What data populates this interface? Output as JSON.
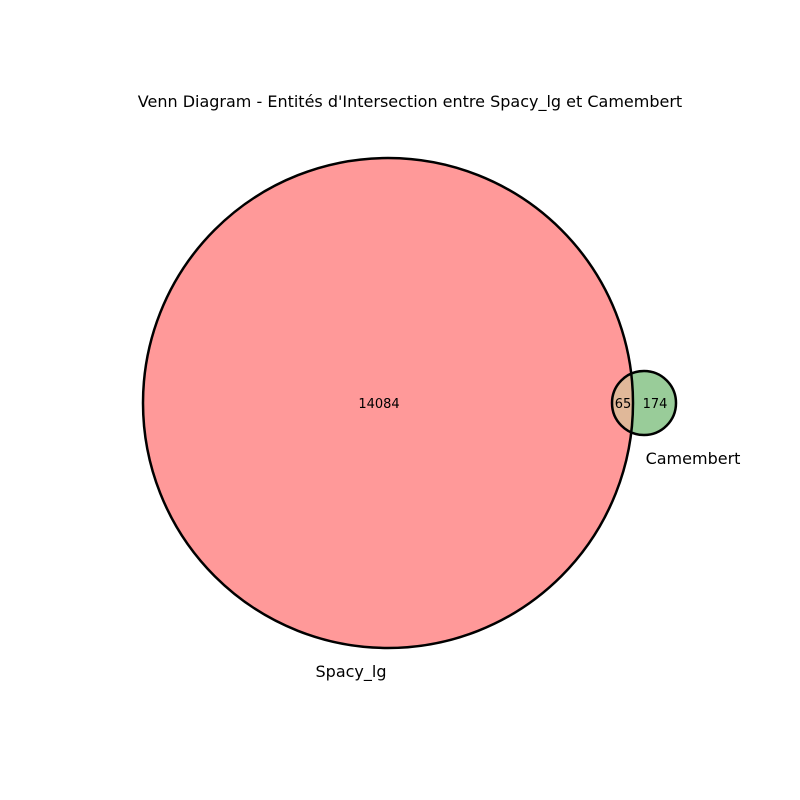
{
  "title": "Venn Diagram - Entités d'Intersection entre Spacy_lg et Camembert",
  "sets": [
    {
      "name": "Spacy_lg",
      "only_count": "14084",
      "color": "#ff9999"
    },
    {
      "name": "Camembert",
      "only_count": "174",
      "color": "#99cc99"
    }
  ],
  "intersection": {
    "count": "65",
    "color": "#e0b899"
  },
  "outline_color": "#000000"
}
